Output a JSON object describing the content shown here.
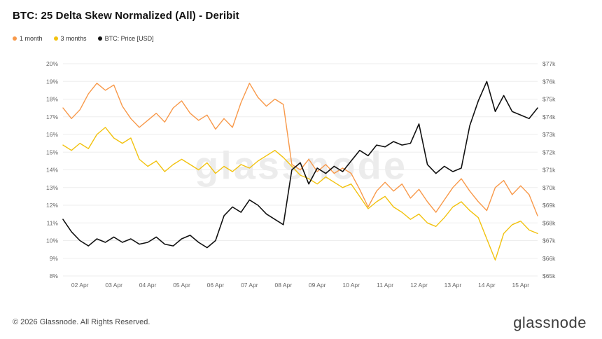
{
  "header": {
    "title": "BTC: 25 Delta Skew Normalized (All) - Deribit"
  },
  "legend": {
    "items": [
      {
        "label": "1 month",
        "color": "#f8994a"
      },
      {
        "label": "3 months",
        "color": "#f2c20f"
      },
      {
        "label": "BTC: Price [USD]",
        "color": "#111111"
      }
    ]
  },
  "watermark": {
    "text": "glassnode"
  },
  "footer": {
    "copyright": "© 2026 Glassnode. All Rights Reserved.",
    "brand": "glassnode"
  },
  "chart_data": {
    "type": "line",
    "title": "BTC: 25 Delta Skew Normalized (All) - Deribit",
    "legend_position": "top-left",
    "grid": "horizontal",
    "x_ticks": [
      "02 Apr",
      "03 Apr",
      "04 Apr",
      "05 Apr",
      "06 Apr",
      "07 Apr",
      "08 Apr",
      "09 Apr",
      "10 Apr",
      "11 Apr",
      "12 Apr",
      "13 Apr",
      "14 Apr",
      "15 Apr"
    ],
    "x_range": [
      1.5,
      15.5
    ],
    "left_axis": {
      "ticks": [
        "8%",
        "9%",
        "10%",
        "11%",
        "12%",
        "13%",
        "14%",
        "15%",
        "16%",
        "17%",
        "18%",
        "19%",
        "20%"
      ],
      "range": [
        8,
        20
      ],
      "unit": "%"
    },
    "right_axis": {
      "ticks": [
        "$65k",
        "$66k",
        "$67k",
        "$68k",
        "$69k",
        "$70k",
        "$71k",
        "$72k",
        "$73k",
        "$74k",
        "$75k",
        "$76k",
        "$77k"
      ],
      "range": [
        65,
        77
      ],
      "unit": "$k"
    },
    "x": [
      1.5,
      1.75,
      2,
      2.25,
      2.5,
      2.75,
      3,
      3.25,
      3.5,
      3.75,
      4,
      4.25,
      4.5,
      4.75,
      5,
      5.25,
      5.5,
      5.75,
      6,
      6.25,
      6.5,
      6.75,
      7,
      7.25,
      7.5,
      7.75,
      8,
      8.25,
      8.5,
      8.75,
      9,
      9.25,
      9.5,
      9.75,
      10,
      10.25,
      10.5,
      10.75,
      11,
      11.25,
      11.5,
      11.75,
      12,
      12.25,
      12.5,
      12.75,
      13,
      13.25,
      13.5,
      13.75,
      14,
      14.25,
      14.5,
      14.75,
      15,
      15.25,
      15.5
    ],
    "series": [
      {
        "name": "1 month",
        "color": "#f8994a",
        "axis": "left",
        "values": [
          17.5,
          16.9,
          17.4,
          18.3,
          18.9,
          18.5,
          18.8,
          17.6,
          16.9,
          16.4,
          16.8,
          17.2,
          16.7,
          17.5,
          17.9,
          17.2,
          16.8,
          17.1,
          16.3,
          16.9,
          16.4,
          17.8,
          18.9,
          18.1,
          17.6,
          18.0,
          17.7,
          14.3,
          14.0,
          14.6,
          13.9,
          14.3,
          13.8,
          14.1,
          13.8,
          12.9,
          11.9,
          12.8,
          13.3,
          12.8,
          13.2,
          12.4,
          12.9,
          12.2,
          11.6,
          12.3,
          13.0,
          13.5,
          12.8,
          12.2,
          11.7,
          13.0,
          13.4,
          12.6,
          13.1,
          12.6,
          11.4
        ]
      },
      {
        "name": "3 months",
        "color": "#f2c20f",
        "axis": "left",
        "values": [
          15.4,
          15.1,
          15.5,
          15.2,
          16.0,
          16.4,
          15.8,
          15.5,
          15.8,
          14.6,
          14.2,
          14.5,
          13.9,
          14.3,
          14.6,
          14.3,
          14.0,
          14.4,
          13.8,
          14.2,
          13.9,
          14.3,
          14.1,
          14.5,
          14.8,
          15.1,
          14.7,
          14.2,
          13.7,
          13.5,
          13.2,
          13.6,
          13.3,
          13.0,
          13.2,
          12.5,
          11.8,
          12.2,
          12.5,
          11.9,
          11.6,
          11.2,
          11.5,
          11.0,
          10.8,
          11.3,
          11.9,
          12.2,
          11.7,
          11.3,
          10.1,
          8.9,
          10.4,
          10.9,
          11.1,
          10.6,
          10.4
        ]
      },
      {
        "name": "BTC: Price [USD]",
        "color": "#111111",
        "axis": "right",
        "values": [
          68.2,
          67.5,
          67.0,
          66.7,
          67.1,
          66.9,
          67.2,
          66.9,
          67.1,
          66.8,
          66.9,
          67.2,
          66.8,
          66.7,
          67.1,
          67.3,
          66.9,
          66.6,
          67.0,
          68.4,
          68.9,
          68.6,
          69.3,
          69.0,
          68.5,
          68.2,
          67.9,
          71.0,
          71.4,
          70.2,
          71.1,
          70.8,
          71.2,
          70.9,
          71.5,
          72.1,
          71.8,
          72.4,
          72.3,
          72.6,
          72.4,
          72.5,
          73.6,
          71.3,
          70.8,
          71.2,
          70.9,
          71.1,
          73.5,
          74.9,
          76.0,
          74.3,
          75.2,
          74.3,
          74.1,
          73.9,
          74.5
        ]
      }
    ]
  }
}
